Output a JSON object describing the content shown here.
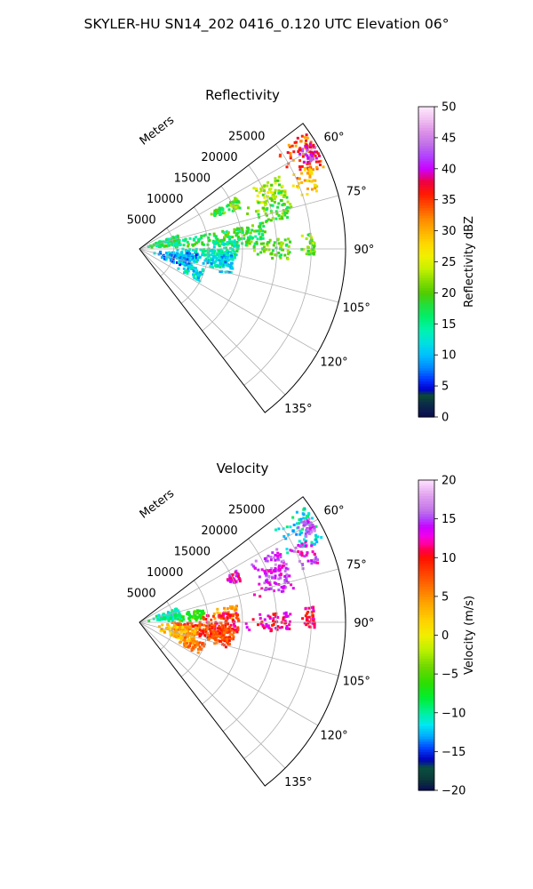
{
  "figure": {
    "suptitle": "SKYLER-HU  SN14_202  0416_0.120 UTC Elevation 06°"
  },
  "chart_data": [
    {
      "type": "heatmap",
      "projection": "polar-sector",
      "title": "Reflectivity",
      "radial_label": "Meters",
      "radial_ticks": [
        5000,
        10000,
        15000,
        20000,
        25000
      ],
      "radial_tick_labels": [
        "5000",
        "10000",
        "15000",
        "20000",
        "25000"
      ],
      "rlim": [
        0,
        30000
      ],
      "azimuth_ticks": [
        60,
        75,
        90,
        105,
        120,
        135
      ],
      "azimuth_tick_labels": [
        "60°",
        "75°",
        "90°",
        "105°",
        "120°",
        "135°"
      ],
      "azimuth_range": [
        52.5,
        142.5
      ],
      "grid": true,
      "colorbar": {
        "label": "Reflectivity dBZ",
        "range": [
          0,
          50
        ],
        "ticks": [
          0,
          5,
          10,
          15,
          20,
          25,
          30,
          35,
          40,
          45,
          50
        ],
        "tick_labels": [
          "0",
          "5",
          "10",
          "15",
          "20",
          "25",
          "30",
          "35",
          "40",
          "45",
          "50"
        ]
      },
      "echo_regions": [
        {
          "az": [
            55,
            66
          ],
          "r": [
            23500,
            29500
          ],
          "value": 34
        },
        {
          "az": [
            58,
            63
          ],
          "r": [
            27000,
            29500
          ],
          "value": 40
        },
        {
          "az": [
            62,
            70
          ],
          "r": [
            17500,
            23000
          ],
          "value": 23
        },
        {
          "az": [
            64,
            72
          ],
          "r": [
            24000,
            27500
          ],
          "value": 28
        },
        {
          "az": [
            68,
            78
          ],
          "r": [
            16500,
            23000
          ],
          "value": 20
        },
        {
          "az": [
            63,
            67
          ],
          "r": [
            11500,
            13500
          ],
          "value": 19
        },
        {
          "az": [
            62,
            68
          ],
          "r": [
            14000,
            16000
          ],
          "value": 20
        },
        {
          "az": [
            78,
            88
          ],
          "r": [
            4000,
            18500
          ],
          "value": 18
        },
        {
          "az": [
            84,
            96
          ],
          "r": [
            9000,
            14500
          ],
          "value": 15
        },
        {
          "az": [
            90,
            103
          ],
          "r": [
            3500,
            13000
          ],
          "value": 13
        },
        {
          "az": [
            94,
            106
          ],
          "r": [
            9500,
            14000
          ],
          "value": 11
        },
        {
          "az": [
            95,
            112
          ],
          "r": [
            2000,
            8500
          ],
          "value": 9
        },
        {
          "az": [
            86,
            94
          ],
          "r": [
            15000,
            22000
          ],
          "value": 20
        },
        {
          "az": [
            70,
            85
          ],
          "r": [
            1000,
            6000
          ],
          "value": 16
        },
        {
          "az": [
            108,
            118
          ],
          "r": [
            6000,
            10000
          ],
          "value": 12
        },
        {
          "az": [
            85,
            92
          ],
          "r": [
            23500,
            25500
          ],
          "value": 21
        }
      ]
    },
    {
      "type": "heatmap",
      "projection": "polar-sector",
      "title": "Velocity",
      "radial_label": "Meters",
      "radial_ticks": [
        5000,
        10000,
        15000,
        20000,
        25000
      ],
      "radial_tick_labels": [
        "5000",
        "10000",
        "15000",
        "20000",
        "25000"
      ],
      "rlim": [
        0,
        30000
      ],
      "azimuth_ticks": [
        60,
        75,
        90,
        105,
        120,
        135
      ],
      "azimuth_tick_labels": [
        "60°",
        "75°",
        "90°",
        "105°",
        "120°",
        "135°"
      ],
      "azimuth_range": [
        52.5,
        142.5
      ],
      "grid": true,
      "colorbar": {
        "label": "Velocity (m/s)",
        "range": [
          -20,
          20
        ],
        "ticks": [
          -20,
          -15,
          -10,
          -5,
          0,
          5,
          10,
          15,
          20
        ],
        "tick_labels": [
          "−20",
          "−15",
          "−10",
          "−5",
          "0",
          "5",
          "10",
          "15",
          "20"
        ]
      },
      "echo_regions": [
        {
          "az": [
            55,
            66
          ],
          "r": [
            23500,
            29500
          ],
          "value": -11
        },
        {
          "az": [
            58,
            63
          ],
          "r": [
            26500,
            29000
          ],
          "value": 15
        },
        {
          "az": [
            62,
            70
          ],
          "r": [
            17500,
            23000
          ],
          "value": 15
        },
        {
          "az": [
            64,
            72
          ],
          "r": [
            24000,
            27500
          ],
          "value": 14
        },
        {
          "az": [
            68,
            78
          ],
          "r": [
            16500,
            23000
          ],
          "value": 14
        },
        {
          "az": [
            62,
            68
          ],
          "r": [
            14000,
            16000
          ],
          "value": 13
        },
        {
          "az": [
            78,
            88
          ],
          "r": [
            4000,
            9500
          ],
          "value": -6
        },
        {
          "az": [
            80,
            88
          ],
          "r": [
            10000,
            14500
          ],
          "value": 4
        },
        {
          "az": [
            84,
            96
          ],
          "r": [
            9000,
            14500
          ],
          "value": 10
        },
        {
          "az": [
            90,
            103
          ],
          "r": [
            3500,
            13000
          ],
          "value": 8
        },
        {
          "az": [
            94,
            106
          ],
          "r": [
            9500,
            14000
          ],
          "value": 8
        },
        {
          "az": [
            95,
            112
          ],
          "r": [
            2000,
            8500
          ],
          "value": 3
        },
        {
          "az": [
            86,
            94
          ],
          "r": [
            15000,
            22000
          ],
          "value": 12
        },
        {
          "az": [
            70,
            85
          ],
          "r": [
            1000,
            6000
          ],
          "value": -10
        },
        {
          "az": [
            108,
            118
          ],
          "r": [
            6000,
            10000
          ],
          "value": 6
        },
        {
          "az": [
            85,
            92
          ],
          "r": [
            23500,
            25500
          ],
          "value": 11
        }
      ]
    }
  ]
}
